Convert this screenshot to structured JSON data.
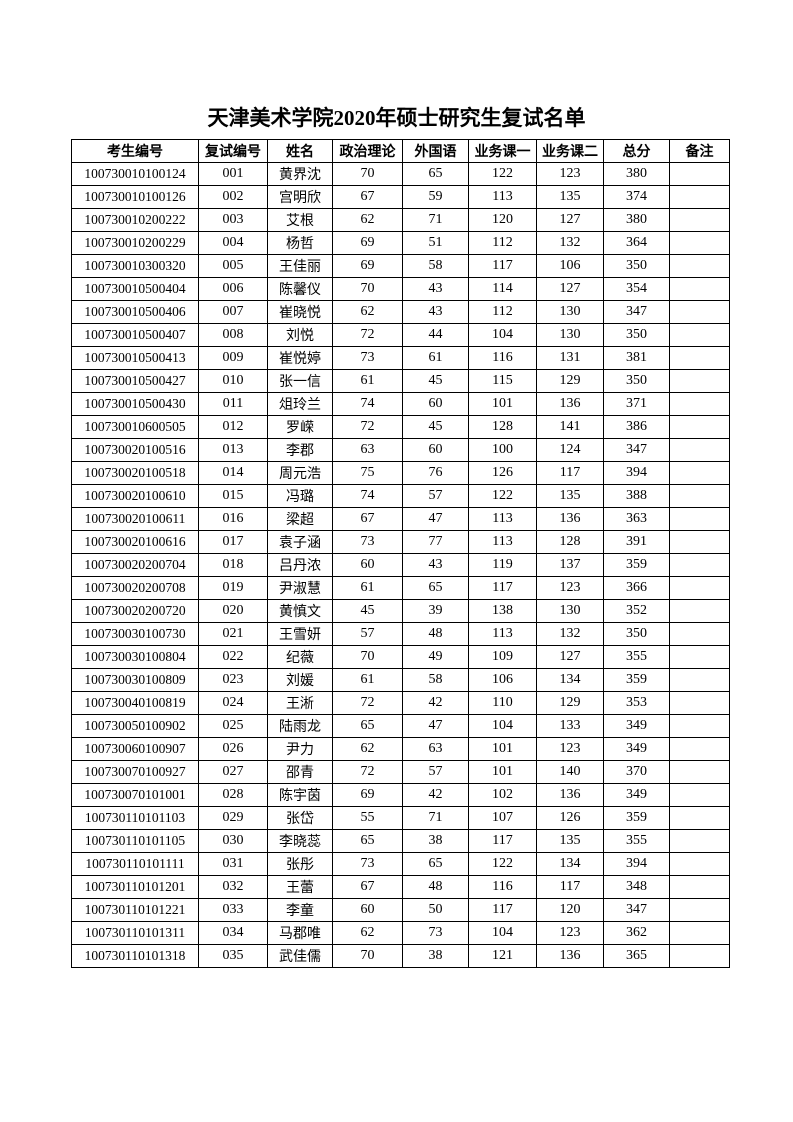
{
  "title": "天津美术学院2020年硕士研究生复试名单",
  "headers": [
    "考生编号",
    "复试编号",
    "姓名",
    "政治理论",
    "外国语",
    "业务课一",
    "业务课二",
    "总分",
    "备注"
  ],
  "rows": [
    [
      "100730010100124",
      "001",
      "黄界沈",
      "70",
      "65",
      "122",
      "123",
      "380",
      ""
    ],
    [
      "100730010100126",
      "002",
      "宫明欣",
      "67",
      "59",
      "113",
      "135",
      "374",
      ""
    ],
    [
      "100730010200222",
      "003",
      "艾根",
      "62",
      "71",
      "120",
      "127",
      "380",
      ""
    ],
    [
      "100730010200229",
      "004",
      "杨哲",
      "69",
      "51",
      "112",
      "132",
      "364",
      ""
    ],
    [
      "100730010300320",
      "005",
      "王佳丽",
      "69",
      "58",
      "117",
      "106",
      "350",
      ""
    ],
    [
      "100730010500404",
      "006",
      "陈馨仪",
      "70",
      "43",
      "114",
      "127",
      "354",
      ""
    ],
    [
      "100730010500406",
      "007",
      "崔晓悦",
      "62",
      "43",
      "112",
      "130",
      "347",
      ""
    ],
    [
      "100730010500407",
      "008",
      "刘悦",
      "72",
      "44",
      "104",
      "130",
      "350",
      ""
    ],
    [
      "100730010500413",
      "009",
      "崔悦婷",
      "73",
      "61",
      "116",
      "131",
      "381",
      ""
    ],
    [
      "100730010500427",
      "010",
      "张一信",
      "61",
      "45",
      "115",
      "129",
      "350",
      ""
    ],
    [
      "100730010500430",
      "011",
      "俎玲兰",
      "74",
      "60",
      "101",
      "136",
      "371",
      ""
    ],
    [
      "100730010600505",
      "012",
      "罗嵘",
      "72",
      "45",
      "128",
      "141",
      "386",
      ""
    ],
    [
      "100730020100516",
      "013",
      "李郡",
      "63",
      "60",
      "100",
      "124",
      "347",
      ""
    ],
    [
      "100730020100518",
      "014",
      "周元浩",
      "75",
      "76",
      "126",
      "117",
      "394",
      ""
    ],
    [
      "100730020100610",
      "015",
      "冯璐",
      "74",
      "57",
      "122",
      "135",
      "388",
      ""
    ],
    [
      "100730020100611",
      "016",
      "梁超",
      "67",
      "47",
      "113",
      "136",
      "363",
      ""
    ],
    [
      "100730020100616",
      "017",
      "袁子涵",
      "73",
      "77",
      "113",
      "128",
      "391",
      ""
    ],
    [
      "100730020200704",
      "018",
      "吕丹浓",
      "60",
      "43",
      "119",
      "137",
      "359",
      ""
    ],
    [
      "100730020200708",
      "019",
      "尹淑慧",
      "61",
      "65",
      "117",
      "123",
      "366",
      ""
    ],
    [
      "100730020200720",
      "020",
      "黄慎文",
      "45",
      "39",
      "138",
      "130",
      "352",
      ""
    ],
    [
      "100730030100730",
      "021",
      "王雪妍",
      "57",
      "48",
      "113",
      "132",
      "350",
      ""
    ],
    [
      "100730030100804",
      "022",
      "纪薇",
      "70",
      "49",
      "109",
      "127",
      "355",
      ""
    ],
    [
      "100730030100809",
      "023",
      "刘媛",
      "61",
      "58",
      "106",
      "134",
      "359",
      ""
    ],
    [
      "100730040100819",
      "024",
      "王淅",
      "72",
      "42",
      "110",
      "129",
      "353",
      ""
    ],
    [
      "100730050100902",
      "025",
      "陆雨龙",
      "65",
      "47",
      "104",
      "133",
      "349",
      ""
    ],
    [
      "100730060100907",
      "026",
      "尹力",
      "62",
      "63",
      "101",
      "123",
      "349",
      ""
    ],
    [
      "100730070100927",
      "027",
      "邵青",
      "72",
      "57",
      "101",
      "140",
      "370",
      ""
    ],
    [
      "100730070101001",
      "028",
      "陈宇茵",
      "69",
      "42",
      "102",
      "136",
      "349",
      ""
    ],
    [
      "100730110101103",
      "029",
      "张岱",
      "55",
      "71",
      "107",
      "126",
      "359",
      ""
    ],
    [
      "100730110101105",
      "030",
      "李晓蕊",
      "65",
      "38",
      "117",
      "135",
      "355",
      ""
    ],
    [
      "100730110101111",
      "031",
      "张彤",
      "73",
      "65",
      "122",
      "134",
      "394",
      ""
    ],
    [
      "100730110101201",
      "032",
      "王蕾",
      "67",
      "48",
      "116",
      "117",
      "348",
      ""
    ],
    [
      "100730110101221",
      "033",
      "李童",
      "60",
      "50",
      "117",
      "120",
      "347",
      ""
    ],
    [
      "100730110101311",
      "034",
      "马郡唯",
      "62",
      "73",
      "104",
      "123",
      "362",
      ""
    ],
    [
      "100730110101318",
      "035",
      "武佳儒",
      "70",
      "38",
      "121",
      "136",
      "365",
      ""
    ]
  ]
}
